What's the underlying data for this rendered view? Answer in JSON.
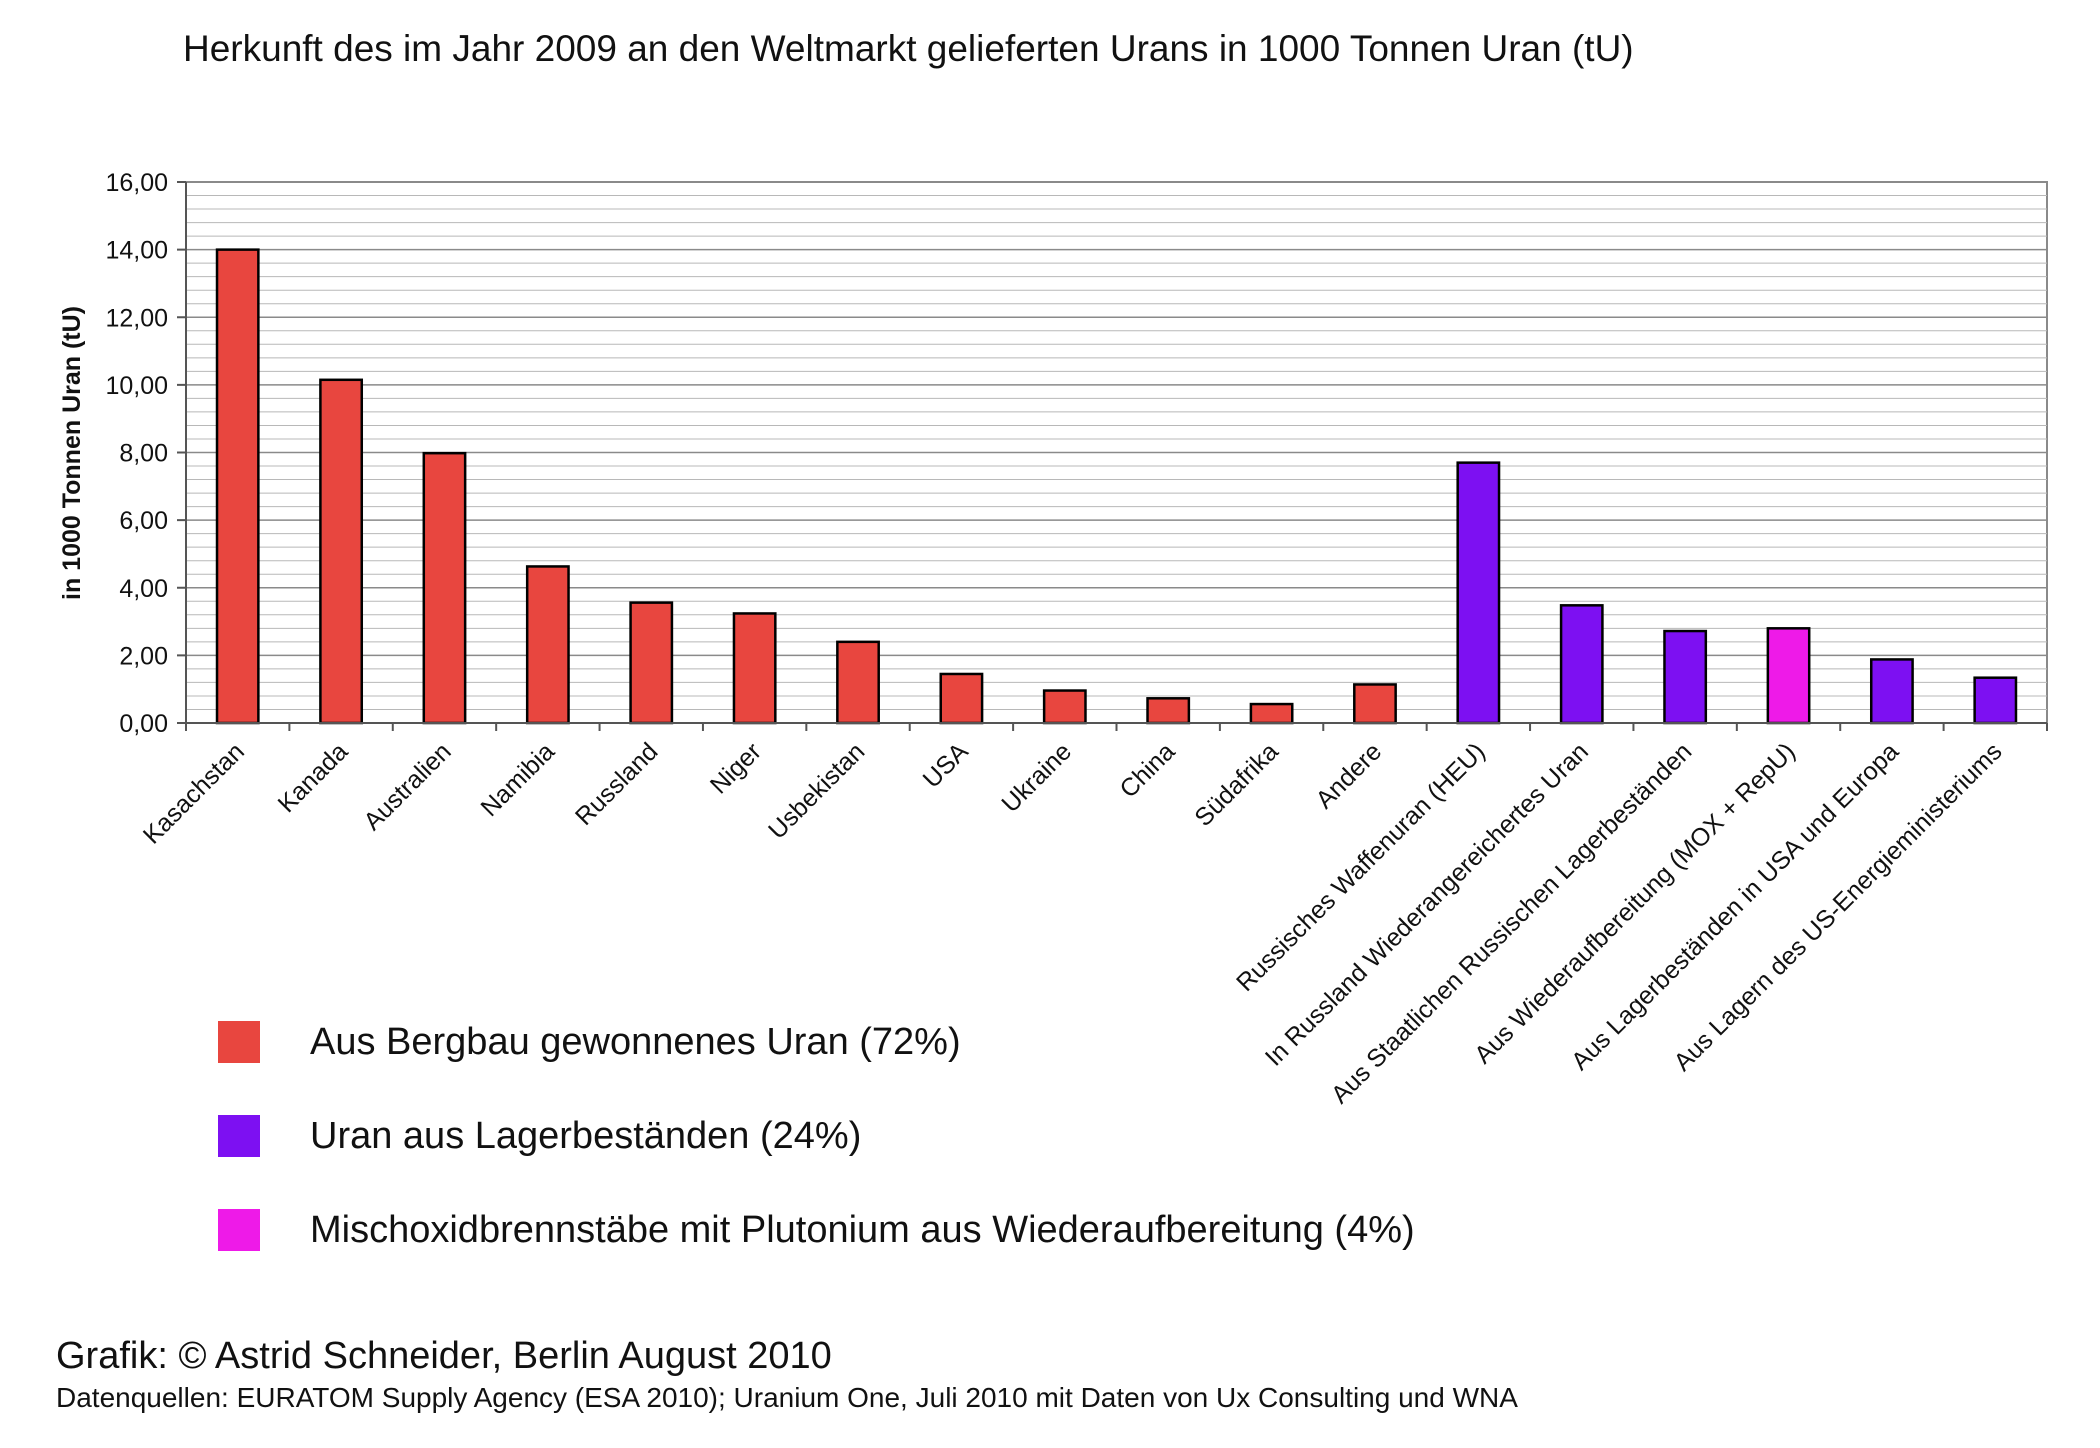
{
  "chart_data": {
    "type": "bar",
    "title": "Herkunft des im Jahr 2009 an den Weltmarkt gelieferten Urans in 1000 Tonnen Uran (tU)",
    "ylabel": "in 1000 Tonnen Uran (tU)",
    "ylim": [
      0,
      16
    ],
    "yticks": [
      "0,00",
      "2,00",
      "4,00",
      "6,00",
      "8,00",
      "10,00",
      "12,00",
      "14,00",
      "16,00"
    ],
    "grid": true,
    "categories": [
      "Kasachstan",
      "Kanada",
      "Australien",
      "Namibia",
      "Russland",
      "Niger",
      "Usbekistan",
      "USA",
      "Ukraine",
      "China",
      "Südafrika",
      "Andere",
      "Russisches Waffenuran (HEU)",
      "In Russland Wiederangereichertes Uran",
      "Aus Staatlichen Russischen Lagerbeständen",
      "Aus Wiederaufbereitung (MOX + RepU)",
      "Aus Lagerbeständen in USA und Europa",
      "Aus Lagern des US-Energieministeriums"
    ],
    "values": [
      14.0,
      10.15,
      7.98,
      4.63,
      3.56,
      3.24,
      2.4,
      1.45,
      0.96,
      0.73,
      0.56,
      1.14,
      7.7,
      3.48,
      2.72,
      2.8,
      1.88,
      1.34
    ],
    "groups": [
      0,
      0,
      0,
      0,
      0,
      0,
      0,
      0,
      0,
      0,
      0,
      0,
      1,
      1,
      1,
      2,
      1,
      1
    ],
    "legend": [
      {
        "name": "Aus Bergbau gewonnenes Uran (72%)",
        "color": "#e8463f"
      },
      {
        "name": "Uran aus Lagerbeständen (24%)",
        "color": "#7d10f2"
      },
      {
        "name": "Mischoxidbrennstäbe mit Plutonium aus Wiederaufbereitung (4%)",
        "color": "#ee1ae8"
      }
    ]
  },
  "footer": {
    "credit": "Grafik: © Astrid Schneider, Berlin August 2010",
    "sources": "Datenquellen: EURATOM Supply Agency (ESA 2010); Uranium One, Juli 2010 mit Daten von Ux Consulting und WNA"
  }
}
